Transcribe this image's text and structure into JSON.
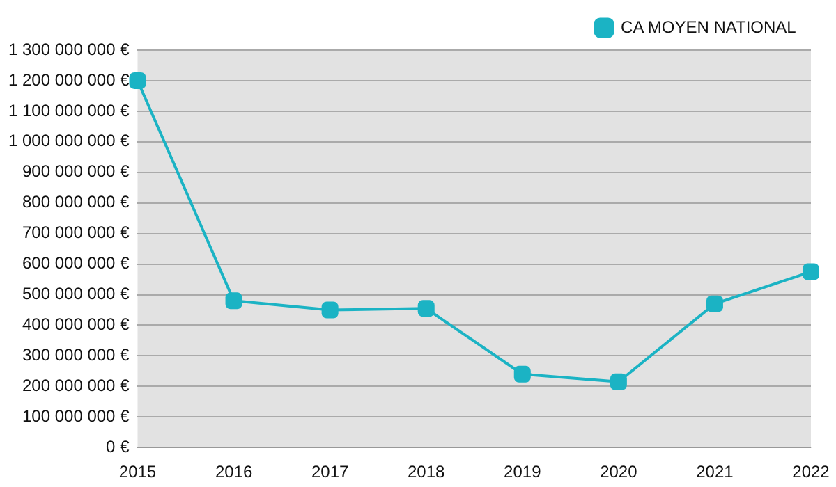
{
  "chart_data": {
    "type": "line",
    "categories": [
      "2015",
      "2016",
      "2017",
      "2018",
      "2019",
      "2020",
      "2021",
      "2022"
    ],
    "series": [
      {
        "name": "CA MOYEN NATIONAL",
        "color": "#1bb3c4",
        "values": [
          1200000000,
          480000000,
          450000000,
          455000000,
          240000000,
          215000000,
          470000000,
          575000000
        ]
      }
    ],
    "ylim": [
      0,
      1300000000
    ],
    "yticks": [
      {
        "value": 0,
        "label": "0 €"
      },
      {
        "value": 100000000,
        "label": "100 000 000 €"
      },
      {
        "value": 200000000,
        "label": "200 000 000 €"
      },
      {
        "value": 300000000,
        "label": "300 000 000 €"
      },
      {
        "value": 400000000,
        "label": "400 000 000 €"
      },
      {
        "value": 500000000,
        "label": "500 000 000 €"
      },
      {
        "value": 600000000,
        "label": "600 000 000 €"
      },
      {
        "value": 700000000,
        "label": "700 000 000 €"
      },
      {
        "value": 800000000,
        "label": "800 000 000 €"
      },
      {
        "value": 900000000,
        "label": "900 000 000 €"
      },
      {
        "value": 1000000000,
        "label": "1 000 000 000 €"
      },
      {
        "value": 1100000000,
        "label": "1 100 000 000 €"
      },
      {
        "value": 1200000000,
        "label": "1 200 000 000 €"
      },
      {
        "value": 1300000000,
        "label": "1 300 000 000 €"
      }
    ],
    "grid": "y",
    "legend": "top right",
    "marker": "square",
    "line_style": "solid"
  }
}
